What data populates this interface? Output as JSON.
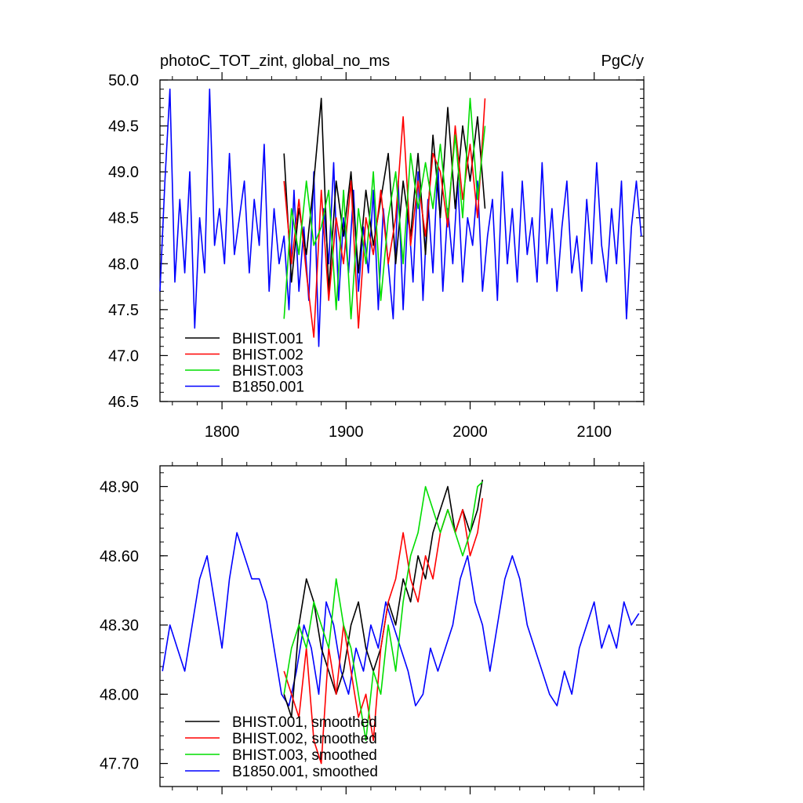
{
  "chart_data": [
    {
      "type": "line",
      "title": "photoC_TOT_zint, global_no_ms",
      "units": "PgC/y",
      "xlabel": "",
      "ylabel": "",
      "xlim": [
        1750,
        2140
      ],
      "ylim": [
        46.5,
        50.0
      ],
      "xticks": [
        1800,
        1900,
        2000,
        2100
      ],
      "yticks": [
        46.5,
        47.0,
        47.5,
        48.0,
        48.5,
        49.0,
        49.5,
        50.0
      ],
      "ytick_labels": [
        "46.5",
        "47.0",
        "47.5",
        "48.0",
        "48.5",
        "49.0",
        "49.5",
        "50.0"
      ],
      "legend_position": "bottom-left",
      "series": [
        {
          "name": "BHIST.001",
          "color": "#000000",
          "x": [
            1850,
            1856,
            1862,
            1868,
            1874,
            1880,
            1886,
            1892,
            1898,
            1904,
            1910,
            1916,
            1922,
            1928,
            1934,
            1940,
            1946,
            1952,
            1958,
            1964,
            1970,
            1976,
            1982,
            1988,
            1994,
            2000,
            2006,
            2012
          ],
          "y": [
            49.2,
            47.8,
            48.6,
            48.1,
            48.9,
            49.8,
            47.7,
            48.9,
            48.3,
            49.0,
            47.9,
            48.8,
            48.2,
            48.7,
            49.2,
            48.0,
            48.9,
            48.3,
            49.2,
            48.1,
            49.4,
            48.5,
            49.7,
            48.6,
            49.5,
            48.9,
            49.6,
            48.6
          ]
        },
        {
          "name": "BHIST.002",
          "color": "#ff0000",
          "x": [
            1850,
            1856,
            1862,
            1868,
            1874,
            1880,
            1886,
            1892,
            1898,
            1904,
            1910,
            1916,
            1922,
            1928,
            1934,
            1940,
            1946,
            1952,
            1958,
            1964,
            1970,
            1976,
            1982,
            1988,
            1994,
            2000,
            2006,
            2012
          ],
          "y": [
            48.9,
            48.0,
            48.7,
            47.9,
            47.2,
            48.8,
            47.6,
            48.5,
            48.0,
            48.9,
            47.3,
            48.5,
            48.1,
            48.8,
            48.0,
            48.5,
            49.6,
            48.2,
            48.9,
            48.3,
            49.2,
            49.0,
            48.4,
            49.5,
            48.7,
            49.3,
            48.5,
            49.8
          ]
        },
        {
          "name": "BHIST.003",
          "color": "#00dd00",
          "x": [
            1850,
            1856,
            1862,
            1868,
            1874,
            1880,
            1886,
            1892,
            1898,
            1904,
            1910,
            1916,
            1922,
            1928,
            1934,
            1940,
            1946,
            1952,
            1958,
            1964,
            1970,
            1976,
            1982,
            1988,
            1994,
            2000,
            2006,
            2012
          ],
          "y": [
            47.4,
            48.6,
            48.1,
            48.9,
            48.2,
            48.4,
            48.8,
            47.5,
            48.8,
            47.4,
            48.6,
            48.0,
            49.0,
            47.6,
            48.5,
            49.0,
            48.0,
            49.2,
            48.6,
            49.1,
            48.6,
            49.3,
            48.5,
            49.4,
            48.5,
            49.8,
            48.7,
            49.5
          ]
        },
        {
          "name": "B1850.001",
          "color": "#0000ff",
          "x": [
            1750,
            1754,
            1758,
            1762,
            1766,
            1770,
            1774,
            1778,
            1782,
            1786,
            1790,
            1794,
            1798,
            1802,
            1806,
            1810,
            1814,
            1818,
            1822,
            1826,
            1830,
            1834,
            1838,
            1842,
            1846,
            1850,
            1854,
            1858,
            1862,
            1866,
            1870,
            1874,
            1878,
            1882,
            1886,
            1890,
            1894,
            1898,
            1902,
            1906,
            1910,
            1914,
            1918,
            1922,
            1926,
            1930,
            1934,
            1938,
            1942,
            1946,
            1950,
            1954,
            1958,
            1962,
            1966,
            1970,
            1974,
            1978,
            1982,
            1986,
            1990,
            1994,
            1998,
            2002,
            2006,
            2010,
            2014,
            2018,
            2022,
            2026,
            2030,
            2034,
            2038,
            2042,
            2046,
            2050,
            2054,
            2058,
            2062,
            2066,
            2070,
            2074,
            2078,
            2082,
            2086,
            2090,
            2094,
            2098,
            2102,
            2106,
            2110,
            2114,
            2118,
            2122,
            2126,
            2130,
            2134,
            2138
          ],
          "y": [
            47.7,
            48.9,
            49.9,
            47.8,
            48.7,
            47.9,
            49.0,
            47.3,
            48.5,
            47.9,
            49.9,
            48.2,
            48.6,
            48.0,
            49.2,
            48.1,
            48.5,
            48.9,
            47.9,
            48.7,
            48.2,
            49.3,
            47.7,
            48.6,
            48.0,
            48.3,
            47.5,
            48.8,
            47.7,
            48.4,
            47.6,
            49.0,
            47.1,
            48.6,
            48.0,
            49.1,
            47.6,
            48.5,
            47.9,
            48.8,
            47.7,
            48.4,
            47.9,
            48.8,
            47.5,
            48.6,
            48.0,
            47.4,
            48.9,
            47.5,
            48.6,
            47.8,
            49.0,
            47.6,
            48.7,
            47.9,
            49.1,
            47.7,
            48.6,
            48.0,
            48.9,
            47.8,
            48.5,
            48.2,
            48.9,
            47.7,
            48.3,
            48.7,
            47.6,
            49.0,
            48.0,
            48.6,
            47.8,
            48.9,
            48.1,
            48.5,
            47.8,
            49.1,
            48.0,
            48.6,
            47.7,
            48.4,
            48.9,
            47.9,
            48.3,
            47.7,
            48.7,
            48.0,
            49.1,
            48.2,
            47.8,
            48.6,
            48.0,
            48.9,
            47.4,
            48.4,
            48.9,
            48.3
          ]
        }
      ]
    },
    {
      "type": "line",
      "title": "",
      "xlabel": "",
      "ylabel": "",
      "xlim": [
        1750,
        2140
      ],
      "ylim": [
        47.6,
        48.99
      ],
      "xticks": [
        1800,
        1900,
        2000,
        2100
      ],
      "yticks": [
        47.7,
        48.0,
        48.3,
        48.6,
        48.9
      ],
      "ytick_labels": [
        "47.70",
        "48.00",
        "48.30",
        "48.60",
        "48.90"
      ],
      "legend_position": "bottom-left",
      "series": [
        {
          "name": "BHIST.001, smoothed",
          "color": "#000000",
          "x": [
            1850,
            1856,
            1862,
            1868,
            1874,
            1880,
            1886,
            1892,
            1898,
            1904,
            1910,
            1916,
            1922,
            1928,
            1934,
            1940,
            1946,
            1952,
            1958,
            1964,
            1970,
            1976,
            1982,
            1988,
            1994,
            2000,
            2006,
            2010
          ],
          "y": [
            48.0,
            47.9,
            48.3,
            48.5,
            48.4,
            48.2,
            48.1,
            48.0,
            48.1,
            48.3,
            48.4,
            48.2,
            48.1,
            48.2,
            48.4,
            48.3,
            48.5,
            48.4,
            48.6,
            48.5,
            48.7,
            48.8,
            48.9,
            48.7,
            48.8,
            48.7,
            48.8,
            48.93
          ]
        },
        {
          "name": "BHIST.002, smoothed",
          "color": "#ff0000",
          "x": [
            1850,
            1856,
            1862,
            1868,
            1874,
            1880,
            1886,
            1892,
            1898,
            1904,
            1910,
            1916,
            1922,
            1928,
            1934,
            1940,
            1946,
            1952,
            1958,
            1964,
            1970,
            1976,
            1982,
            1988,
            1994,
            2000,
            2006,
            2010
          ],
          "y": [
            48.1,
            48.0,
            47.9,
            48.2,
            47.8,
            47.7,
            48.2,
            48.0,
            48.3,
            48.1,
            47.9,
            48.0,
            47.8,
            48.2,
            48.4,
            48.5,
            48.7,
            48.5,
            48.4,
            48.6,
            48.5,
            48.7,
            48.8,
            48.7,
            48.8,
            48.6,
            48.7,
            48.85
          ]
        },
        {
          "name": "BHIST.003, smoothed",
          "color": "#00dd00",
          "x": [
            1850,
            1856,
            1862,
            1868,
            1874,
            1880,
            1886,
            1892,
            1898,
            1904,
            1910,
            1916,
            1922,
            1928,
            1934,
            1940,
            1946,
            1952,
            1958,
            1964,
            1970,
            1976,
            1982,
            1988,
            1994,
            2000,
            2006,
            2010
          ],
          "y": [
            48.0,
            48.2,
            48.3,
            48.2,
            48.4,
            48.3,
            48.2,
            48.5,
            48.3,
            48.2,
            48.0,
            47.8,
            48.1,
            48.0,
            48.3,
            48.1,
            48.4,
            48.6,
            48.7,
            48.9,
            48.8,
            48.7,
            48.8,
            48.7,
            48.6,
            48.7,
            48.9,
            48.92
          ]
        },
        {
          "name": "B1850.001, smoothed",
          "color": "#0000ff",
          "x": [
            1752,
            1758,
            1764,
            1770,
            1776,
            1782,
            1788,
            1794,
            1800,
            1806,
            1812,
            1818,
            1824,
            1830,
            1836,
            1842,
            1848,
            1854,
            1860,
            1866,
            1872,
            1878,
            1884,
            1890,
            1896,
            1902,
            1908,
            1914,
            1920,
            1926,
            1932,
            1938,
            1944,
            1950,
            1956,
            1962,
            1968,
            1974,
            1980,
            1986,
            1992,
            1998,
            2004,
            2010,
            2016,
            2022,
            2028,
            2034,
            2040,
            2046,
            2052,
            2058,
            2064,
            2070,
            2076,
            2082,
            2088,
            2094,
            2100,
            2106,
            2112,
            2118,
            2124,
            2130,
            2136
          ],
          "y": [
            48.1,
            48.3,
            48.2,
            48.1,
            48.3,
            48.5,
            48.6,
            48.4,
            48.2,
            48.5,
            48.7,
            48.6,
            48.5,
            48.5,
            48.4,
            48.2,
            48.0,
            47.95,
            48.1,
            48.3,
            48.2,
            48.0,
            48.4,
            48.3,
            48.1,
            48.0,
            48.2,
            48.1,
            48.3,
            48.2,
            48.4,
            48.3,
            48.2,
            48.1,
            47.95,
            48.0,
            48.2,
            48.1,
            48.2,
            48.3,
            48.5,
            48.6,
            48.4,
            48.3,
            48.1,
            48.3,
            48.5,
            48.6,
            48.5,
            48.3,
            48.2,
            48.1,
            48.0,
            47.95,
            48.1,
            48.0,
            48.2,
            48.3,
            48.4,
            48.2,
            48.3,
            48.2,
            48.4,
            48.3,
            48.35
          ]
        }
      ]
    }
  ]
}
